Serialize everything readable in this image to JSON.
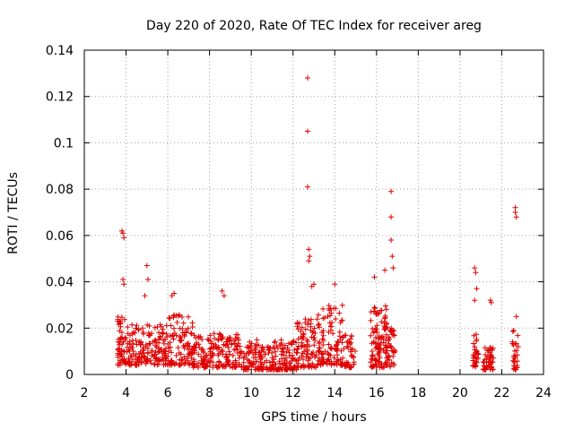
{
  "chart_data": {
    "type": "scatter",
    "title": "Day 220 of 2020, Rate Of TEC Index for receiver areg",
    "xlabel": "GPS time / hours",
    "ylabel": "ROTI / TECUs",
    "xlim": [
      2,
      24
    ],
    "ylim": [
      0,
      0.14
    ],
    "x_ticks": [
      "2",
      "4",
      "6",
      "8",
      "10",
      "12",
      "14",
      "16",
      "18",
      "20",
      "22",
      "24"
    ],
    "y_ticks": [
      "0",
      "0.02",
      "0.04",
      "0.06",
      "0.08",
      "0.1",
      "0.12",
      "0.14"
    ],
    "grid": true,
    "marker": "+",
    "series_color": "#e00000",
    "notable_points": [
      {
        "x": 3.8,
        "y": 0.062
      },
      {
        "x": 3.85,
        "y": 0.061
      },
      {
        "x": 3.9,
        "y": 0.059
      },
      {
        "x": 3.85,
        "y": 0.041
      },
      {
        "x": 3.9,
        "y": 0.039
      },
      {
        "x": 5.0,
        "y": 0.047
      },
      {
        "x": 5.05,
        "y": 0.041
      },
      {
        "x": 4.9,
        "y": 0.034
      },
      {
        "x": 6.3,
        "y": 0.035
      },
      {
        "x": 6.2,
        "y": 0.034
      },
      {
        "x": 8.6,
        "y": 0.036
      },
      {
        "x": 8.7,
        "y": 0.034
      },
      {
        "x": 12.7,
        "y": 0.128
      },
      {
        "x": 12.7,
        "y": 0.105
      },
      {
        "x": 12.7,
        "y": 0.081
      },
      {
        "x": 12.75,
        "y": 0.054
      },
      {
        "x": 12.8,
        "y": 0.051
      },
      {
        "x": 12.75,
        "y": 0.049
      },
      {
        "x": 12.9,
        "y": 0.038
      },
      {
        "x": 13.0,
        "y": 0.039
      },
      {
        "x": 14.0,
        "y": 0.039
      },
      {
        "x": 15.9,
        "y": 0.042
      },
      {
        "x": 16.4,
        "y": 0.045
      },
      {
        "x": 16.7,
        "y": 0.079
      },
      {
        "x": 16.7,
        "y": 0.068
      },
      {
        "x": 16.7,
        "y": 0.058
      },
      {
        "x": 16.75,
        "y": 0.051
      },
      {
        "x": 16.8,
        "y": 0.046
      },
      {
        "x": 20.7,
        "y": 0.046
      },
      {
        "x": 20.75,
        "y": 0.044
      },
      {
        "x": 20.8,
        "y": 0.037
      },
      {
        "x": 20.7,
        "y": 0.032
      },
      {
        "x": 21.45,
        "y": 0.032
      },
      {
        "x": 21.5,
        "y": 0.031
      },
      {
        "x": 22.65,
        "y": 0.072
      },
      {
        "x": 22.65,
        "y": 0.07
      },
      {
        "x": 22.7,
        "y": 0.068
      },
      {
        "x": 22.7,
        "y": 0.025
      }
    ],
    "clusters": [
      {
        "x_start": 3.6,
        "x_end": 4.2,
        "y_base": 0.004,
        "y_top": 0.025,
        "density": 2.0
      },
      {
        "x_start": 4.2,
        "x_end": 6.0,
        "y_base": 0.004,
        "y_top": 0.022,
        "density": 1.4
      },
      {
        "x_start": 6.0,
        "x_end": 7.2,
        "y_base": 0.004,
        "y_top": 0.026,
        "density": 1.4
      },
      {
        "x_start": 7.2,
        "x_end": 9.5,
        "y_base": 0.003,
        "y_top": 0.018,
        "density": 1.3
      },
      {
        "x_start": 9.5,
        "x_end": 12.2,
        "y_base": 0.002,
        "y_top": 0.015,
        "density": 1.3
      },
      {
        "x_start": 12.2,
        "x_end": 13.2,
        "y_base": 0.003,
        "y_top": 0.024,
        "density": 1.4
      },
      {
        "x_start": 13.2,
        "x_end": 14.4,
        "y_base": 0.004,
        "y_top": 0.03,
        "density": 1.6
      },
      {
        "x_start": 14.4,
        "x_end": 15.0,
        "y_base": 0.003,
        "y_top": 0.017,
        "density": 1.0
      },
      {
        "x_start": 15.7,
        "x_end": 16.5,
        "y_base": 0.003,
        "y_top": 0.03,
        "density": 2.2
      },
      {
        "x_start": 16.5,
        "x_end": 16.9,
        "y_base": 0.003,
        "y_top": 0.022,
        "density": 1.6
      },
      {
        "x_start": 20.6,
        "x_end": 20.9,
        "y_base": 0.002,
        "y_top": 0.018,
        "density": 1.5
      },
      {
        "x_start": 21.1,
        "x_end": 21.6,
        "y_base": 0.002,
        "y_top": 0.012,
        "density": 1.5
      },
      {
        "x_start": 22.5,
        "x_end": 22.8,
        "y_base": 0.002,
        "y_top": 0.02,
        "density": 1.8
      }
    ]
  }
}
